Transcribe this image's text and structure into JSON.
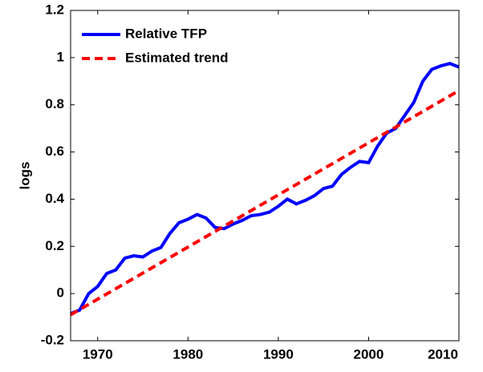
{
  "chart_data": {
    "type": "line",
    "y_label": "logs",
    "xlim": [
      1967,
      2010
    ],
    "xticks": [
      1970,
      1980,
      1990,
      2000,
      2010
    ],
    "ylim": [
      -0.2,
      1.2
    ],
    "yticks": [
      -0.2,
      0,
      0.2,
      0.4,
      0.6,
      0.8,
      1,
      1.2
    ],
    "legend": "upper-left",
    "series": [
      {
        "name": "Relative TFP",
        "color": "#0000ff",
        "dash": "solid",
        "x": [
          1967,
          1968,
          1969,
          1970,
          1971,
          1972,
          1973,
          1974,
          1975,
          1976,
          1977,
          1978,
          1979,
          1980,
          1981,
          1982,
          1983,
          1984,
          1985,
          1986,
          1987,
          1988,
          1989,
          1990,
          1991,
          1992,
          1993,
          1994,
          1995,
          1996,
          1997,
          1998,
          1999,
          2000,
          2001,
          2002,
          2003,
          2004,
          2005,
          2006,
          2007,
          2008,
          2009,
          2010
        ],
        "values": [
          -0.085,
          -0.07,
          0.0,
          0.03,
          0.085,
          0.1,
          0.15,
          0.16,
          0.155,
          0.18,
          0.195,
          0.255,
          0.3,
          0.315,
          0.335,
          0.32,
          0.28,
          0.275,
          0.295,
          0.31,
          0.33,
          0.335,
          0.345,
          0.37,
          0.4,
          0.38,
          0.395,
          0.415,
          0.445,
          0.455,
          0.505,
          0.535,
          0.56,
          0.555,
          0.625,
          0.68,
          0.7,
          0.755,
          0.81,
          0.9,
          0.95,
          0.965,
          0.975,
          0.96
        ]
      },
      {
        "name": "Estimated trend",
        "color": "#ff0000",
        "dash": "dashed",
        "x": [
          1967,
          2010
        ],
        "values": [
          -0.09,
          0.86
        ]
      }
    ]
  }
}
